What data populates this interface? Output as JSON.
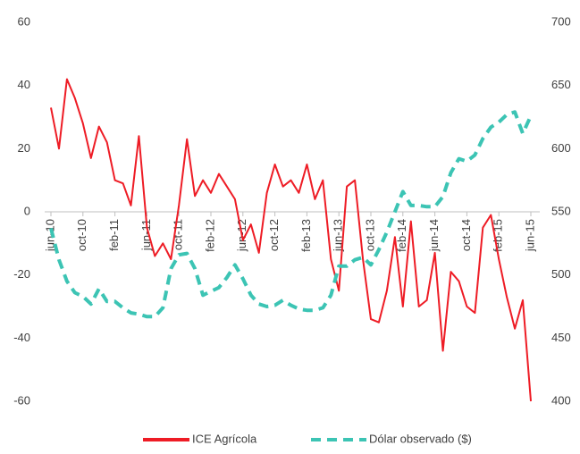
{
  "chart_data": {
    "type": "line",
    "categories": [
      "jun-10",
      null,
      null,
      null,
      "oct-10",
      null,
      null,
      null,
      "feb-11",
      null,
      null,
      null,
      "jun-11",
      null,
      null,
      null,
      "oct-11",
      null,
      null,
      null,
      "feb-12",
      null,
      null,
      null,
      "jun-12",
      null,
      null,
      null,
      "oct-12",
      null,
      null,
      null,
      "feb-13",
      null,
      null,
      null,
      "jun-13",
      null,
      null,
      null,
      "oct-13",
      null,
      null,
      null,
      "feb-14",
      null,
      null,
      null,
      "jun-14",
      null,
      null,
      null,
      "oct-14",
      null,
      null,
      null,
      "feb-15",
      null,
      null,
      null,
      "jun-15"
    ],
    "series": [
      {
        "name": "ICE Agrícola",
        "color": "#ee1c25",
        "values": [
          33,
          20,
          42,
          36,
          28,
          17,
          27,
          22,
          10,
          9,
          2,
          24,
          -5,
          -14,
          -10,
          -15,
          2,
          23,
          5,
          10,
          6,
          12,
          8,
          4,
          -9,
          -4,
          -13,
          6,
          15,
          8,
          10,
          6,
          15,
          4,
          10,
          -15,
          -25,
          8,
          10,
          -15,
          -34,
          -35,
          -25,
          -8,
          -30,
          -3,
          -30,
          -28,
          -13,
          -44,
          -19,
          -22,
          -30,
          -32,
          -5,
          -1,
          -15,
          -27,
          -37,
          -28,
          -60
        ]
      },
      {
        "name": "Dólar observado ($)",
        "color": "#3cc4b4",
        "axis": "y2",
        "values": [
          537,
          512,
          495,
          486,
          483,
          477,
          489,
          479,
          479,
          474,
          470,
          469,
          467,
          467,
          474,
          505,
          516,
          517,
          505,
          484,
          487,
          490,
          498,
          508,
          497,
          484,
          477,
          475,
          476,
          480,
          476,
          473,
          472,
          472,
          474,
          484,
          507,
          507,
          512,
          514,
          508,
          520,
          534,
          550,
          566,
          555,
          555,
          554,
          554,
          562,
          581,
          592,
          590,
          595,
          608,
          617,
          621,
          627,
          629,
          612,
          626
        ]
      }
    ],
    "ylim": [
      -60,
      60
    ],
    "yticks": [
      -60,
      -40,
      -20,
      0,
      20,
      40,
      60
    ],
    "y2lim": [
      400,
      700
    ],
    "y2ticks": [
      400,
      450,
      500,
      550,
      600,
      650,
      700
    ],
    "legend": "bottom"
  }
}
